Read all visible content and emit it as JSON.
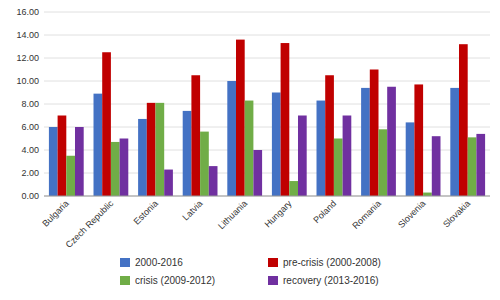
{
  "chart_data": {
    "type": "bar",
    "categories": [
      "Bulgaria",
      "Czech Republic",
      "Estonia",
      "Latvia",
      "Lithuania",
      "Hungary",
      "Poland",
      "Romania",
      "Slovenia",
      "Slovakia"
    ],
    "series": [
      {
        "name": "2000-2016",
        "color": "#4472C4",
        "values": [
          6.0,
          8.9,
          6.7,
          7.4,
          10.0,
          9.0,
          8.3,
          9.4,
          6.4,
          9.4
        ]
      },
      {
        "name": "pre-crisis (2000-2008)",
        "color": "#C00000",
        "values": [
          7.0,
          12.5,
          8.1,
          10.5,
          13.6,
          13.3,
          10.5,
          11.0,
          9.7,
          13.2
        ]
      },
      {
        "name": "crisis (2009-2012)",
        "color": "#70AD47",
        "values": [
          3.5,
          4.7,
          8.1,
          5.6,
          8.3,
          1.3,
          5.0,
          5.8,
          0.3,
          5.1
        ]
      },
      {
        "name": "recovery (2013-2016)",
        "color": "#7030A0",
        "values": [
          6.0,
          5.0,
          2.3,
          2.6,
          4.0,
          7.0,
          7.0,
          9.5,
          5.2,
          5.4
        ]
      }
    ],
    "ylim": [
      0,
      16
    ],
    "yticks": [
      {
        "value": 0,
        "label": "0.00"
      },
      {
        "value": 2,
        "label": "2.00"
      },
      {
        "value": 4,
        "label": "4.00"
      },
      {
        "value": 6,
        "label": "6.00"
      },
      {
        "value": 8,
        "label": "8.00"
      },
      {
        "value": 10,
        "label": "10.00"
      },
      {
        "value": 12,
        "label": "12.00"
      },
      {
        "value": 14,
        "label": "14.00"
      },
      {
        "value": 16,
        "label": "16.00"
      }
    ],
    "grid": true,
    "legend": "bottom"
  }
}
